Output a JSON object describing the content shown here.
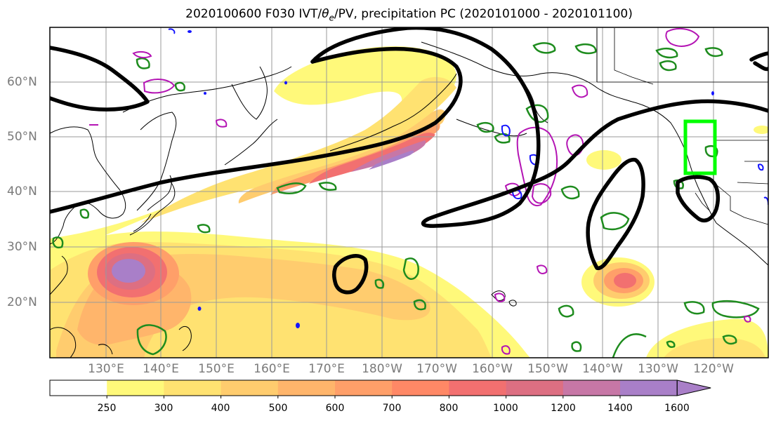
{
  "figure": {
    "title": "2020100600 F030 IVT/θe/PV, precipitation PC (2020101000 - 2020101100)"
  },
  "map": {
    "lat_labels": [
      "60°N",
      "50°N",
      "40°N",
      "30°N",
      "20°N"
    ],
    "lon_labels": [
      "130°E",
      "140°E",
      "150°E",
      "160°E",
      "170°E",
      "180°W",
      "170°W",
      "160°W",
      "150°W",
      "140°W",
      "130°W",
      "120°W"
    ],
    "box_color": "#00ff00",
    "ivt_contour_color": "#000000",
    "pv_contour_color": "#1e8c1e",
    "theta_contour_color": "#b414b4"
  },
  "colorbar": {
    "ticks": [
      "250",
      "300",
      "400",
      "500",
      "600",
      "700",
      "800",
      "1000",
      "1200",
      "1400",
      "1600"
    ],
    "colors": [
      "#ffffff",
      "#fff97a",
      "#ffe271",
      "#ffcc6e",
      "#ffb56b",
      "#ff9f69",
      "#ff8866",
      "#f27070",
      "#dd6f82",
      "#c777a6",
      "#a97fc8"
    ]
  }
}
